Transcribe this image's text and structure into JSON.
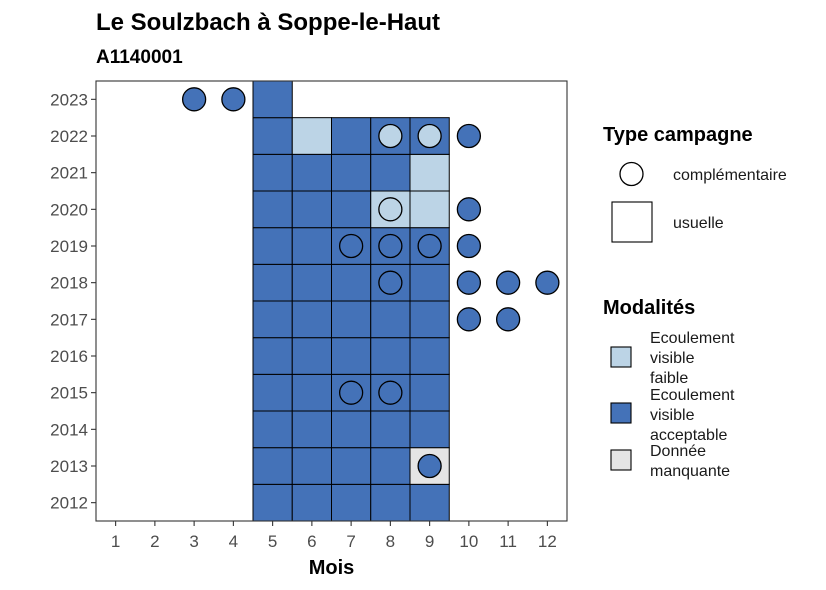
{
  "chart_data": {
    "type": "heatmap",
    "title": "Le Soulzbach à Soppe-le-Haut",
    "subtitle": "A1140001",
    "xlabel": "Mois",
    "ylabel": "",
    "x_ticks": [
      1,
      2,
      3,
      4,
      5,
      6,
      7,
      8,
      9,
      10,
      11,
      12
    ],
    "y_ticks": [
      2012,
      2013,
      2014,
      2015,
      2016,
      2017,
      2018,
      2019,
      2020,
      2021,
      2022,
      2023
    ],
    "xlim": [
      0.5,
      12.5
    ],
    "ylim": [
      2011.5,
      2023.5
    ],
    "grid": false,
    "legend_position": "right",
    "colors": {
      "faible": "#bcd4e6",
      "acceptable": "#4472b8",
      "manquante": "#e5e5e5"
    },
    "shape_legend": {
      "title": "Type campagne",
      "items": [
        {
          "key": "complementaire",
          "label": "complémentaire",
          "shape": "circle"
        },
        {
          "key": "usuelle",
          "label": "usuelle",
          "shape": "square"
        }
      ]
    },
    "fill_legend": {
      "title": "Modalités",
      "items": [
        {
          "key": "faible",
          "label": "Ecoulement visible faible",
          "lines": [
            "Ecoulement",
            "visible",
            "faible"
          ]
        },
        {
          "key": "acceptable",
          "label": "Ecoulement visible acceptable",
          "lines": [
            "Ecoulement",
            "visible",
            "acceptable"
          ]
        },
        {
          "key": "manquante",
          "label": "Donnée manquante",
          "lines": [
            "Donnée",
            "manquante"
          ]
        }
      ]
    },
    "usuelle": [
      {
        "year": 2012,
        "month": 5,
        "mod": "acceptable"
      },
      {
        "year": 2012,
        "month": 6,
        "mod": "acceptable"
      },
      {
        "year": 2012,
        "month": 7,
        "mod": "acceptable"
      },
      {
        "year": 2012,
        "month": 8,
        "mod": "acceptable"
      },
      {
        "year": 2012,
        "month": 9,
        "mod": "acceptable"
      },
      {
        "year": 2013,
        "month": 5,
        "mod": "acceptable"
      },
      {
        "year": 2013,
        "month": 6,
        "mod": "acceptable"
      },
      {
        "year": 2013,
        "month": 7,
        "mod": "acceptable"
      },
      {
        "year": 2013,
        "month": 8,
        "mod": "acceptable"
      },
      {
        "year": 2013,
        "month": 9,
        "mod": "manquante"
      },
      {
        "year": 2014,
        "month": 5,
        "mod": "acceptable"
      },
      {
        "year": 2014,
        "month": 6,
        "mod": "acceptable"
      },
      {
        "year": 2014,
        "month": 7,
        "mod": "acceptable"
      },
      {
        "year": 2014,
        "month": 8,
        "mod": "acceptable"
      },
      {
        "year": 2014,
        "month": 9,
        "mod": "acceptable"
      },
      {
        "year": 2015,
        "month": 5,
        "mod": "acceptable"
      },
      {
        "year": 2015,
        "month": 6,
        "mod": "acceptable"
      },
      {
        "year": 2015,
        "month": 7,
        "mod": "acceptable"
      },
      {
        "year": 2015,
        "month": 8,
        "mod": "acceptable"
      },
      {
        "year": 2015,
        "month": 9,
        "mod": "acceptable"
      },
      {
        "year": 2016,
        "month": 5,
        "mod": "acceptable"
      },
      {
        "year": 2016,
        "month": 6,
        "mod": "acceptable"
      },
      {
        "year": 2016,
        "month": 7,
        "mod": "acceptable"
      },
      {
        "year": 2016,
        "month": 8,
        "mod": "acceptable"
      },
      {
        "year": 2016,
        "month": 9,
        "mod": "acceptable"
      },
      {
        "year": 2017,
        "month": 5,
        "mod": "acceptable"
      },
      {
        "year": 2017,
        "month": 6,
        "mod": "acceptable"
      },
      {
        "year": 2017,
        "month": 7,
        "mod": "acceptable"
      },
      {
        "year": 2017,
        "month": 8,
        "mod": "acceptable"
      },
      {
        "year": 2017,
        "month": 9,
        "mod": "acceptable"
      },
      {
        "year": 2018,
        "month": 5,
        "mod": "acceptable"
      },
      {
        "year": 2018,
        "month": 6,
        "mod": "acceptable"
      },
      {
        "year": 2018,
        "month": 7,
        "mod": "acceptable"
      },
      {
        "year": 2018,
        "month": 8,
        "mod": "acceptable"
      },
      {
        "year": 2018,
        "month": 9,
        "mod": "acceptable"
      },
      {
        "year": 2019,
        "month": 5,
        "mod": "acceptable"
      },
      {
        "year": 2019,
        "month": 6,
        "mod": "acceptable"
      },
      {
        "year": 2019,
        "month": 7,
        "mod": "acceptable"
      },
      {
        "year": 2019,
        "month": 8,
        "mod": "acceptable"
      },
      {
        "year": 2019,
        "month": 9,
        "mod": "acceptable"
      },
      {
        "year": 2020,
        "month": 5,
        "mod": "acceptable"
      },
      {
        "year": 2020,
        "month": 6,
        "mod": "acceptable"
      },
      {
        "year": 2020,
        "month": 7,
        "mod": "acceptable"
      },
      {
        "year": 2020,
        "month": 8,
        "mod": "faible"
      },
      {
        "year": 2020,
        "month": 9,
        "mod": "faible"
      },
      {
        "year": 2021,
        "month": 5,
        "mod": "acceptable"
      },
      {
        "year": 2021,
        "month": 6,
        "mod": "acceptable"
      },
      {
        "year": 2021,
        "month": 7,
        "mod": "acceptable"
      },
      {
        "year": 2021,
        "month": 8,
        "mod": "acceptable"
      },
      {
        "year": 2021,
        "month": 9,
        "mod": "faible"
      },
      {
        "year": 2022,
        "month": 5,
        "mod": "acceptable"
      },
      {
        "year": 2022,
        "month": 6,
        "mod": "faible"
      },
      {
        "year": 2022,
        "month": 7,
        "mod": "acceptable"
      },
      {
        "year": 2022,
        "month": 8,
        "mod": "acceptable"
      },
      {
        "year": 2022,
        "month": 9,
        "mod": "acceptable"
      },
      {
        "year": 2023,
        "month": 5,
        "mod": "acceptable"
      }
    ],
    "complementaire": [
      {
        "year": 2013,
        "month": 9,
        "mod": "acceptable"
      },
      {
        "year": 2015,
        "month": 7,
        "mod": "acceptable"
      },
      {
        "year": 2015,
        "month": 8,
        "mod": "acceptable"
      },
      {
        "year": 2017,
        "month": 10,
        "mod": "acceptable"
      },
      {
        "year": 2017,
        "month": 11,
        "mod": "acceptable"
      },
      {
        "year": 2018,
        "month": 8,
        "mod": "acceptable"
      },
      {
        "year": 2018,
        "month": 10,
        "mod": "acceptable"
      },
      {
        "year": 2018,
        "month": 11,
        "mod": "acceptable"
      },
      {
        "year": 2018,
        "month": 12,
        "mod": "acceptable"
      },
      {
        "year": 2019,
        "month": 7,
        "mod": "acceptable"
      },
      {
        "year": 2019,
        "month": 8,
        "mod": "acceptable"
      },
      {
        "year": 2019,
        "month": 9,
        "mod": "acceptable"
      },
      {
        "year": 2019,
        "month": 10,
        "mod": "acceptable"
      },
      {
        "year": 2020,
        "month": 8,
        "mod": "faible"
      },
      {
        "year": 2020,
        "month": 10,
        "mod": "acceptable"
      },
      {
        "year": 2022,
        "month": 8,
        "mod": "faible"
      },
      {
        "year": 2022,
        "month": 9,
        "mod": "faible"
      },
      {
        "year": 2022,
        "month": 10,
        "mod": "acceptable"
      },
      {
        "year": 2023,
        "month": 3,
        "mod": "acceptable"
      },
      {
        "year": 2023,
        "month": 4,
        "mod": "acceptable"
      }
    ]
  }
}
